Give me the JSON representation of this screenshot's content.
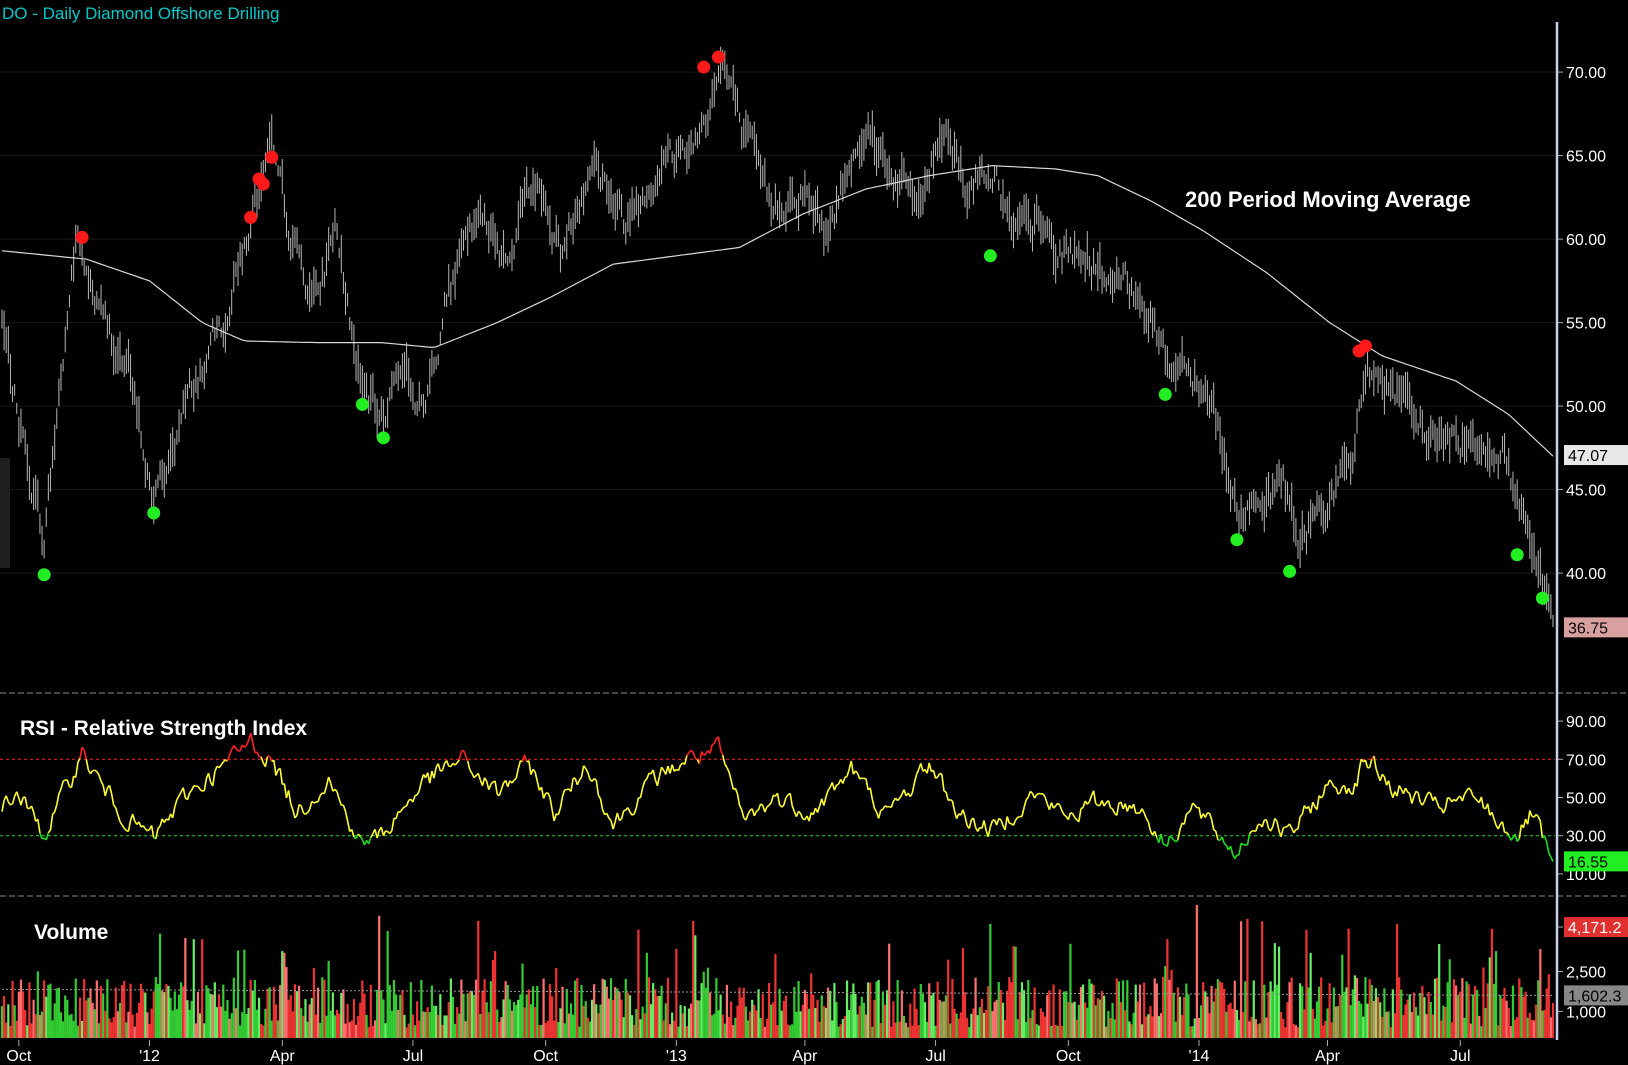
{
  "header": {
    "title": "DO - Daily  Diamond Offshore Drilling"
  },
  "colors": {
    "background": "#000000",
    "title": "#00c8c8",
    "price_bars": "#b8b8b8",
    "moving_average": "#d8d8d8",
    "swing_high": "#ff1a1a",
    "swing_low": "#22ee22",
    "rsi_line": "#ffff33",
    "rsi_overbought": "#ff2222",
    "rsi_oversold": "#22dd22",
    "volume_up": "#33cc33",
    "volume_down": "#ee3333",
    "grid": "#1a1a1a",
    "axis_text": "#ffffff"
  },
  "chart_data": [
    {
      "type": "line",
      "name": "price-panel",
      "annotation": "200 Period Moving Average",
      "ylim": [
        33,
        73
      ],
      "y_ticks": [
        "70.00",
        "65.00",
        "60.00",
        "55.00",
        "50.00",
        "45.00",
        "40.00"
      ],
      "y_tick_values": [
        70,
        65,
        60,
        55,
        50,
        45,
        40
      ],
      "x_tick_labels": [
        "Oct",
        "'12",
        "Apr",
        "Jul",
        "Oct",
        "'13",
        "Apr",
        "Jul",
        "Oct",
        "'14",
        "Apr",
        "Jul"
      ],
      "x_tick_index": [
        8,
        70,
        133,
        195,
        258,
        320,
        381,
        443,
        506,
        568,
        629,
        692
      ],
      "n_bars": 737,
      "price_anchors": [
        [
          0,
          55
        ],
        [
          8,
          49
        ],
        [
          20,
          42
        ],
        [
          35,
          60
        ],
        [
          45,
          56
        ],
        [
          60,
          52
        ],
        [
          72,
          44
        ],
        [
          90,
          51
        ],
        [
          105,
          55
        ],
        [
          118,
          61
        ],
        [
          128,
          64.8
        ],
        [
          140,
          59
        ],
        [
          150,
          56
        ],
        [
          158,
          61
        ],
        [
          170,
          51
        ],
        [
          180,
          49
        ],
        [
          190,
          53
        ],
        [
          200,
          49.5
        ],
        [
          210,
          56
        ],
        [
          225,
          61
        ],
        [
          240,
          59
        ],
        [
          252,
          64
        ],
        [
          265,
          59
        ],
        [
          280,
          65
        ],
        [
          295,
          61
        ],
        [
          310,
          64
        ],
        [
          330,
          66
        ],
        [
          342,
          70.5
        ],
        [
          352,
          66
        ],
        [
          365,
          62
        ],
        [
          380,
          63
        ],
        [
          392,
          60
        ],
        [
          403,
          65
        ],
        [
          410,
          67
        ],
        [
          422,
          64
        ],
        [
          435,
          62
        ],
        [
          448,
          67
        ],
        [
          458,
          63
        ],
        [
          470,
          64.5
        ],
        [
          480,
          60
        ],
        [
          492,
          61
        ],
        [
          500,
          59
        ],
        [
          515,
          59
        ],
        [
          528,
          57
        ],
        [
          540,
          57
        ],
        [
          555,
          52
        ],
        [
          562,
          53
        ],
        [
          575,
          50
        ],
        [
          585,
          44
        ],
        [
          598,
          43
        ],
        [
          608,
          46
        ],
        [
          615,
          41.5
        ],
        [
          625,
          44
        ],
        [
          640,
          46
        ],
        [
          648,
          52.5
        ],
        [
          658,
          51
        ],
        [
          670,
          49
        ],
        [
          682,
          48
        ],
        [
          700,
          48
        ],
        [
          712,
          47
        ],
        [
          725,
          42.5
        ],
        [
          736,
          37
        ]
      ],
      "ma_anchors": [
        [
          0,
          59.3
        ],
        [
          40,
          58.8
        ],
        [
          70,
          57.5
        ],
        [
          95,
          55
        ],
        [
          115,
          53.9
        ],
        [
          150,
          53.8
        ],
        [
          180,
          53.8
        ],
        [
          205,
          53.5
        ],
        [
          235,
          55
        ],
        [
          260,
          56.5
        ],
        [
          290,
          58.5
        ],
        [
          320,
          59
        ],
        [
          350,
          59.5
        ],
        [
          380,
          61.5
        ],
        [
          410,
          63
        ],
        [
          440,
          63.8
        ],
        [
          470,
          64.4
        ],
        [
          500,
          64.2
        ],
        [
          520,
          63.8
        ],
        [
          545,
          62.3
        ],
        [
          570,
          60.5
        ],
        [
          600,
          58
        ],
        [
          630,
          55
        ],
        [
          655,
          53
        ],
        [
          690,
          51.5
        ],
        [
          715,
          49.5
        ],
        [
          736,
          47
        ]
      ],
      "last_price": "36.75",
      "ma_value": "47.07",
      "swing_highs": [
        [
          38,
          60.1
        ],
        [
          118,
          61.3
        ],
        [
          122,
          63.6
        ],
        [
          124,
          63.3
        ],
        [
          128,
          64.9
        ],
        [
          333,
          70.3
        ],
        [
          340,
          70.9
        ],
        [
          644,
          53.3
        ],
        [
          647,
          53.6
        ]
      ],
      "swing_lows": [
        [
          20,
          39.9
        ],
        [
          72,
          43.6
        ],
        [
          171,
          50.1
        ],
        [
          181,
          48.1
        ],
        [
          469,
          59.0
        ],
        [
          552,
          50.7
        ],
        [
          586,
          42.0
        ],
        [
          611,
          40.1
        ],
        [
          719,
          41.1
        ],
        [
          731,
          38.5
        ]
      ]
    },
    {
      "type": "line",
      "name": "rsi-panel",
      "title": "RSI - Relative Strength Index",
      "ylim": [
        0,
        100
      ],
      "y_ticks": [
        "90.00",
        "70.00",
        "50.00",
        "30.00",
        "10.00"
      ],
      "y_tick_values": [
        90,
        70,
        50,
        30,
        10
      ],
      "overbought": 70,
      "oversold": 30,
      "last_value": "16.55",
      "rsi_anchors": [
        [
          0,
          45
        ],
        [
          8,
          52
        ],
        [
          20,
          30
        ],
        [
          38,
          73
        ],
        [
          48,
          55
        ],
        [
          60,
          38
        ],
        [
          72,
          29
        ],
        [
          88,
          52
        ],
        [
          105,
          66
        ],
        [
          118,
          80
        ],
        [
          128,
          69
        ],
        [
          140,
          42
        ],
        [
          155,
          60
        ],
        [
          170,
          26
        ],
        [
          180,
          30
        ],
        [
          200,
          58
        ],
        [
          218,
          70
        ],
        [
          235,
          52
        ],
        [
          250,
          68
        ],
        [
          262,
          42
        ],
        [
          278,
          68
        ],
        [
          290,
          36
        ],
        [
          310,
          60
        ],
        [
          325,
          70
        ],
        [
          340,
          75
        ],
        [
          352,
          38
        ],
        [
          368,
          50
        ],
        [
          385,
          42
        ],
        [
          403,
          65
        ],
        [
          420,
          40
        ],
        [
          440,
          68
        ],
        [
          455,
          40
        ],
        [
          470,
          33
        ],
        [
          490,
          52
        ],
        [
          505,
          40
        ],
        [
          520,
          48
        ],
        [
          540,
          45
        ],
        [
          552,
          25
        ],
        [
          565,
          45
        ],
        [
          585,
          21
        ],
        [
          598,
          40
        ],
        [
          611,
          30
        ],
        [
          628,
          55
        ],
        [
          642,
          57
        ],
        [
          647,
          71
        ],
        [
          660,
          55
        ],
        [
          680,
          45
        ],
        [
          700,
          50
        ],
        [
          712,
          35
        ],
        [
          720,
          30
        ],
        [
          726,
          42
        ],
        [
          731,
          28
        ],
        [
          736,
          16.5
        ]
      ]
    },
    {
      "type": "bar",
      "name": "volume-panel",
      "title": "Volume",
      "ylim": [
        0,
        5000
      ],
      "y_ticks": [
        "4,171.2",
        "2,500",
        "1,000"
      ],
      "y_tick_values": [
        4171.2,
        2500,
        1000
      ],
      "avg_label": "1,602.3",
      "avg_value": 1602.3
    }
  ]
}
